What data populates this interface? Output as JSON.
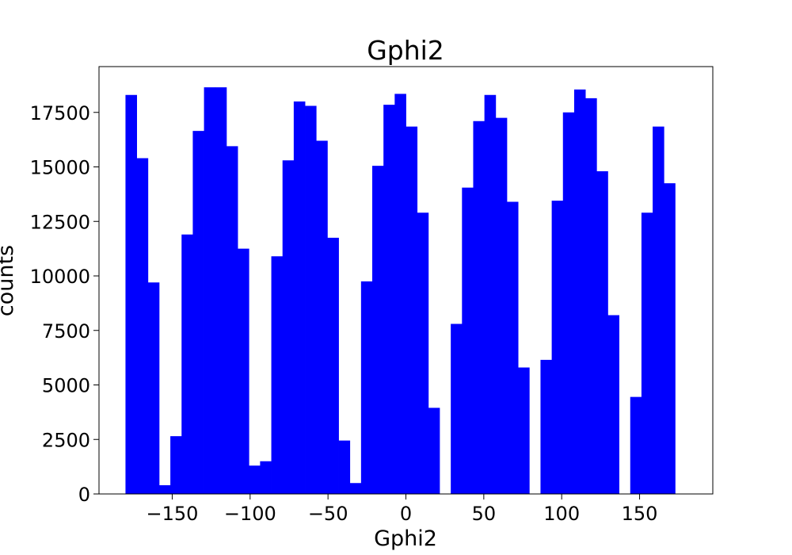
{
  "chart_data": {
    "type": "bar",
    "title": "Gphi2",
    "xlabel": "Gphi2",
    "ylabel": "counts",
    "xlim": [
      -197,
      197
    ],
    "ylim": [
      0,
      19600
    ],
    "xticks": [
      -150,
      -100,
      -50,
      0,
      50,
      100,
      150
    ],
    "xtick_labels": [
      "−150",
      "−100",
      "−50",
      "0",
      "50",
      "100",
      "150"
    ],
    "yticks": [
      0,
      2500,
      5000,
      7500,
      10000,
      12500,
      15000,
      17500
    ],
    "ytick_labels": [
      "0",
      "2500",
      "5000",
      "7500",
      "10000",
      "12500",
      "15000",
      "17500"
    ],
    "bar_color": "#0000ff",
    "bin_width": 7.2,
    "bin_start": -180,
    "values": [
      18300,
      15400,
      9700,
      400,
      2650,
      11900,
      16650,
      18650,
      18650,
      15950,
      11250,
      1300,
      1500,
      10900,
      15300,
      18000,
      17800,
      16200,
      11750,
      2450,
      500,
      9750,
      15050,
      17850,
      18350,
      16850,
      12900,
      3950,
      0,
      7800,
      14050,
      17100,
      18300,
      17250,
      13400,
      5800,
      0,
      6150,
      13450,
      17500,
      18550,
      18150,
      14800,
      8200,
      0,
      4450,
      12900,
      16850,
      14250
    ],
    "grid": false,
    "legend": "none"
  }
}
